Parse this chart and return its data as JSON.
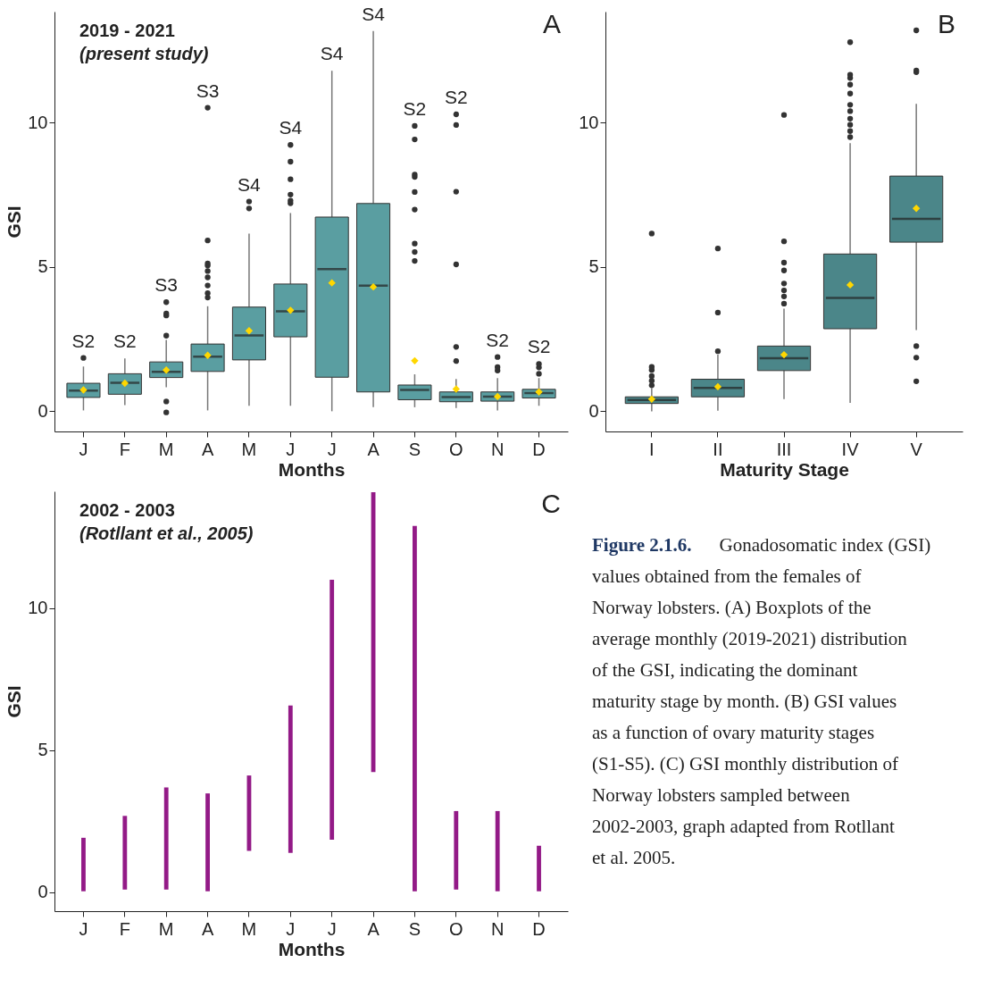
{
  "chart_data": [
    {
      "type": "box",
      "title": "A",
      "xlabel": "Months",
      "ylabel": "GSI",
      "categories": [
        "J",
        "F",
        "M",
        "A",
        "M",
        "J",
        "J",
        "A",
        "S",
        "O",
        "N",
        "D"
      ],
      "ylim": [
        -0.7,
        13.85
      ],
      "yticks": [
        0,
        5,
        10
      ],
      "grid": false,
      "annotations": [
        "2019 - 2021",
        "(present study)",
        "S2",
        "S2",
        "S3",
        "S3",
        "S4",
        "S4",
        "S4",
        "S4",
        "S2",
        "S2",
        "S2",
        "S2"
      ],
      "series": [
        {
          "color": "#5a9ea1",
          "boxes": [
            {
              "low": 0.03,
              "q1": 0.48,
              "median": 0.72,
              "q3": 0.97,
              "high": 1.55,
              "mean": 0.74,
              "outliers": [
                1.85
              ]
            },
            {
              "low": 0.21,
              "q1": 0.59,
              "median": 0.99,
              "q3": 1.3,
              "high": 1.83,
              "mean": 0.97
            },
            {
              "low": 0.83,
              "q1": 1.17,
              "median": 1.37,
              "q3": 1.71,
              "high": 2.47,
              "mean": 1.43,
              "outliers": [
                0.34,
                -0.04,
                2.62,
                3.32,
                3.39,
                3.78
              ]
            },
            {
              "low": 0.03,
              "q1": 1.38,
              "median": 1.89,
              "q3": 2.33,
              "high": 3.64,
              "mean": 1.94,
              "outliers": [
                3.94,
                4.09,
                4.36,
                4.64,
                4.86,
                5.05,
                5.12,
                5.92,
                10.52
              ]
            },
            {
              "low": 0.19,
              "q1": 1.78,
              "median": 2.63,
              "q3": 3.61,
              "high": 6.16,
              "mean": 2.79,
              "outliers": [
                7.03,
                7.27
              ]
            },
            {
              "low": 0.19,
              "q1": 2.58,
              "median": 3.46,
              "q3": 4.41,
              "high": 6.87,
              "mean": 3.5,
              "outliers": [
                7.21,
                7.3,
                7.51,
                8.04,
                8.65,
                9.23
              ]
            },
            {
              "low": 0.0,
              "q1": 1.18,
              "median": 4.93,
              "q3": 6.73,
              "high": 11.8,
              "mean": 4.45
            },
            {
              "low": 0.14,
              "q1": 0.67,
              "median": 4.35,
              "q3": 7.2,
              "high": 13.18,
              "mean": 4.31
            },
            {
              "low": 0.14,
              "q1": 0.4,
              "median": 0.74,
              "q3": 0.91,
              "high": 1.28,
              "mean": 1.75,
              "outliers": [
                5.21,
                5.52,
                5.81,
                6.99,
                7.6,
                8.12,
                8.2,
                9.42,
                9.89
              ]
            },
            {
              "low": 0.11,
              "q1": 0.33,
              "median": 0.49,
              "q3": 0.67,
              "high": 1.12,
              "mean": 0.77,
              "outliers": [
                1.74,
                2.23,
                5.09,
                7.61,
                9.92,
                10.29
              ]
            },
            {
              "low": 0.03,
              "q1": 0.35,
              "median": 0.51,
              "q3": 0.67,
              "high": 1.15,
              "mean": 0.51,
              "outliers": [
                1.41,
                1.53,
                1.88
              ]
            },
            {
              "low": 0.19,
              "q1": 0.46,
              "median": 0.63,
              "q3": 0.76,
              "high": 1.15,
              "mean": 0.67,
              "outliers": [
                1.3,
                1.52,
                1.64
              ]
            }
          ]
        }
      ]
    },
    {
      "type": "box",
      "title": "B",
      "xlabel": "Maturity Stage",
      "categories": [
        "I",
        "II",
        "III",
        "IV",
        "V"
      ],
      "ylim": [
        -0.7,
        13.85
      ],
      "yticks": [
        0,
        5,
        10
      ],
      "grid": false,
      "series": [
        {
          "color": "#4b8689",
          "boxes": [
            {
              "low": 0.0,
              "q1": 0.27,
              "median": 0.39,
              "q3": 0.5,
              "high": 0.8,
              "mean": 0.42,
              "outliers": [
                0.9,
                1.06,
                1.22,
                1.43,
                1.54,
                6.16
              ]
            },
            {
              "low": 0.02,
              "q1": 0.5,
              "median": 0.81,
              "q3": 1.11,
              "high": 1.96,
              "mean": 0.85,
              "outliers": [
                2.08,
                3.42,
                5.64
              ]
            },
            {
              "low": 0.42,
              "q1": 1.41,
              "median": 1.84,
              "q3": 2.26,
              "high": 3.56,
              "mean": 1.96,
              "outliers": [
                3.73,
                3.98,
                4.19,
                4.43,
                4.88,
                5.15,
                5.89,
                10.27
              ]
            },
            {
              "low": 0.29,
              "q1": 2.86,
              "median": 3.93,
              "q3": 5.45,
              "high": 9.29,
              "mean": 4.38,
              "outliers": [
                9.5,
                9.71,
                9.93,
                10.14,
                10.4,
                10.62,
                11.01,
                11.32,
                11.55,
                11.66,
                12.79
              ]
            },
            {
              "low": 2.81,
              "q1": 5.86,
              "median": 6.67,
              "q3": 8.15,
              "high": 10.65,
              "mean": 7.03,
              "outliers": [
                1.04,
                1.86,
                2.26,
                11.75,
                11.81,
                13.2
              ]
            }
          ]
        }
      ]
    },
    {
      "type": "bar",
      "title": "C",
      "xlabel": "Months",
      "ylabel": "GSI",
      "categories": [
        "J",
        "F",
        "M",
        "A",
        "M",
        "J",
        "J",
        "A",
        "S",
        "O",
        "N",
        "D"
      ],
      "ylim": [
        -0.66,
        14.1
      ],
      "yticks": [
        0,
        5,
        10
      ],
      "grid": false,
      "annotations": [
        "2002 - 2003",
        "(Rotllant et al., 2005)"
      ],
      "series": [
        {
          "color": "#931a87",
          "base": [
            0.04,
            0.1,
            0.1,
            0.04,
            1.46,
            1.39,
            1.85,
            4.23,
            0.04,
            0.1,
            0.04,
            0.04
          ],
          "values": [
            1.88,
            2.59,
            3.59,
            3.44,
            2.65,
            5.18,
            9.14,
            9.84,
            12.84,
            2.76,
            2.82,
            1.6
          ]
        }
      ]
    },
    {
      "type": "other",
      "title": "Figure 2.1.6.",
      "annotations": [
        "Gonadosomatic index (GSI) values obtained from the females of Norway lobsters. (A) Boxplots of the average monthly (2019-2021) distribution of the GSI, indicating the dominant maturity stage by month. (B) GSI values as a function of ovary maturity stages (S1-S5). (C) GSI monthly distribution of Norway lobsters sampled between 2002-2003, graph adapted from Rotllant et al. 2005."
      ]
    }
  ]
}
